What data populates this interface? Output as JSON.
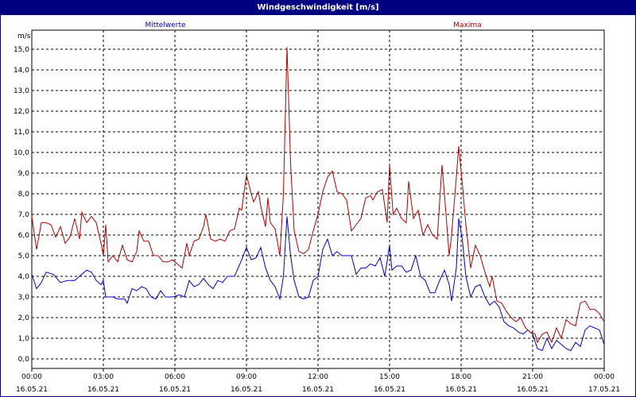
{
  "window": {
    "title": "Windgeschwindigkeit [m/s]"
  },
  "colors": {
    "mittelwerte": "#0000c8",
    "maxima": "#b00000",
    "titlebar": "#000080",
    "grid": "#000000"
  },
  "chart_data": {
    "type": "line",
    "title": "Windgeschwindigkeit [m/s]",
    "ylabel": "m/s",
    "xlabel": "",
    "ylim": [
      0,
      16
    ],
    "xlim": [
      0,
      24
    ],
    "grid": true,
    "legend": "top",
    "yticks": [
      "0,0",
      "1,0",
      "2,0",
      "3,0",
      "4,0",
      "5,0",
      "6,0",
      "7,0",
      "8,0",
      "9,0",
      "10,0",
      "11,0",
      "12,0",
      "13,0",
      "14,0",
      "15,0"
    ],
    "xticks": [
      {
        "time": "00:00",
        "date": "16.05.21"
      },
      {
        "time": "03:00",
        "date": "16.05.21"
      },
      {
        "time": "06:00",
        "date": "16.05.21"
      },
      {
        "time": "09:00",
        "date": "16.05.21"
      },
      {
        "time": "12:00",
        "date": "16.05.21"
      },
      {
        "time": "15:00",
        "date": "16.05.21"
      },
      {
        "time": "18:00",
        "date": "16.05.21"
      },
      {
        "time": "21:00",
        "date": "16.05.21"
      },
      {
        "time": "00:00",
        "date": "17.05.21"
      }
    ],
    "series": [
      {
        "name": "Mittelwerte",
        "points": [
          [
            0.0,
            4.1
          ],
          [
            0.2,
            3.4
          ],
          [
            0.4,
            3.7
          ],
          [
            0.6,
            4.2
          ],
          [
            0.9,
            4.1
          ],
          [
            1.2,
            3.7
          ],
          [
            1.5,
            3.8
          ],
          [
            1.8,
            3.8
          ],
          [
            2.0,
            4.0
          ],
          [
            2.3,
            4.3
          ],
          [
            2.5,
            4.2
          ],
          [
            2.7,
            3.8
          ],
          [
            2.9,
            3.6
          ],
          [
            3.0,
            3.8
          ],
          [
            3.1,
            3.0
          ],
          [
            3.4,
            3.0
          ],
          [
            3.6,
            2.9
          ],
          [
            3.9,
            2.9
          ],
          [
            4.0,
            2.7
          ],
          [
            4.2,
            3.4
          ],
          [
            4.4,
            3.3
          ],
          [
            4.6,
            3.5
          ],
          [
            4.8,
            3.4
          ],
          [
            5.0,
            3.0
          ],
          [
            5.2,
            2.9
          ],
          [
            5.4,
            3.3
          ],
          [
            5.6,
            3.0
          ],
          [
            5.9,
            3.0
          ],
          [
            6.2,
            3.1
          ],
          [
            6.4,
            3.0
          ],
          [
            6.6,
            3.8
          ],
          [
            6.8,
            3.5
          ],
          [
            7.0,
            3.6
          ],
          [
            7.2,
            3.9
          ],
          [
            7.4,
            3.6
          ],
          [
            7.6,
            3.4
          ],
          [
            7.8,
            3.8
          ],
          [
            8.0,
            3.7
          ],
          [
            8.2,
            4.0
          ],
          [
            8.5,
            4.0
          ],
          [
            8.8,
            4.8
          ],
          [
            9.0,
            5.4
          ],
          [
            9.2,
            4.8
          ],
          [
            9.4,
            4.9
          ],
          [
            9.6,
            5.4
          ],
          [
            9.8,
            4.4
          ],
          [
            10.0,
            3.8
          ],
          [
            10.2,
            3.5
          ],
          [
            10.4,
            2.9
          ],
          [
            10.55,
            4.0
          ],
          [
            10.7,
            6.9
          ],
          [
            10.85,
            5.0
          ],
          [
            11.0,
            3.8
          ],
          [
            11.2,
            3.0
          ],
          [
            11.4,
            2.9
          ],
          [
            11.6,
            3.0
          ],
          [
            11.8,
            3.8
          ],
          [
            12.0,
            4.0
          ],
          [
            12.2,
            5.3
          ],
          [
            12.4,
            5.8
          ],
          [
            12.6,
            5.0
          ],
          [
            12.8,
            5.2
          ],
          [
            13.0,
            5.0
          ],
          [
            13.2,
            5.0
          ],
          [
            13.4,
            5.0
          ],
          [
            13.6,
            4.1
          ],
          [
            13.8,
            4.4
          ],
          [
            14.0,
            4.4
          ],
          [
            14.2,
            4.6
          ],
          [
            14.4,
            4.5
          ],
          [
            14.6,
            4.9
          ],
          [
            14.8,
            4.0
          ],
          [
            15.0,
            5.5
          ],
          [
            15.1,
            4.3
          ],
          [
            15.3,
            4.5
          ],
          [
            15.5,
            4.5
          ],
          [
            15.7,
            4.2
          ],
          [
            15.9,
            4.3
          ],
          [
            16.1,
            5.0
          ],
          [
            16.3,
            4.0
          ],
          [
            16.5,
            3.8
          ],
          [
            16.7,
            3.2
          ],
          [
            16.9,
            3.2
          ],
          [
            17.1,
            3.8
          ],
          [
            17.3,
            4.3
          ],
          [
            17.5,
            3.6
          ],
          [
            17.6,
            2.8
          ],
          [
            17.8,
            4.4
          ],
          [
            17.9,
            6.8
          ],
          [
            18.05,
            5.8
          ],
          [
            18.2,
            4.0
          ],
          [
            18.4,
            3.0
          ],
          [
            18.6,
            3.5
          ],
          [
            18.8,
            3.6
          ],
          [
            19.0,
            3.0
          ],
          [
            19.2,
            2.6
          ],
          [
            19.4,
            2.8
          ],
          [
            19.6,
            2.5
          ],
          [
            19.8,
            1.8
          ],
          [
            20.0,
            1.6
          ],
          [
            20.2,
            1.5
          ],
          [
            20.4,
            1.3
          ],
          [
            20.6,
            1.2
          ],
          [
            20.8,
            1.4
          ],
          [
            21.0,
            1.2
          ],
          [
            21.2,
            0.5
          ],
          [
            21.4,
            0.4
          ],
          [
            21.6,
            1.0
          ],
          [
            21.8,
            0.5
          ],
          [
            22.0,
            0.9
          ],
          [
            22.2,
            0.7
          ],
          [
            22.4,
            0.5
          ],
          [
            22.6,
            0.4
          ],
          [
            22.8,
            0.8
          ],
          [
            23.0,
            0.6
          ],
          [
            23.2,
            1.4
          ],
          [
            23.4,
            1.6
          ],
          [
            23.6,
            1.5
          ],
          [
            23.8,
            1.4
          ],
          [
            24.0,
            0.7
          ]
        ]
      },
      {
        "name": "Maxima",
        "points": [
          [
            0.0,
            6.9
          ],
          [
            0.2,
            5.3
          ],
          [
            0.4,
            6.6
          ],
          [
            0.6,
            6.6
          ],
          [
            0.8,
            6.5
          ],
          [
            1.0,
            5.9
          ],
          [
            1.2,
            6.4
          ],
          [
            1.4,
            5.6
          ],
          [
            1.6,
            5.9
          ],
          [
            1.8,
            6.8
          ],
          [
            2.0,
            5.8
          ],
          [
            2.1,
            7.1
          ],
          [
            2.3,
            6.6
          ],
          [
            2.5,
            6.9
          ],
          [
            2.7,
            6.6
          ],
          [
            2.9,
            5.6
          ],
          [
            3.0,
            5.0
          ],
          [
            3.1,
            6.5
          ],
          [
            3.2,
            4.7
          ],
          [
            3.4,
            5.0
          ],
          [
            3.6,
            4.7
          ],
          [
            3.8,
            5.5
          ],
          [
            4.0,
            4.8
          ],
          [
            4.2,
            4.7
          ],
          [
            4.4,
            5.2
          ],
          [
            4.5,
            6.2
          ],
          [
            4.7,
            5.7
          ],
          [
            4.9,
            5.7
          ],
          [
            5.1,
            5.0
          ],
          [
            5.3,
            5.0
          ],
          [
            5.5,
            4.7
          ],
          [
            5.7,
            4.7
          ],
          [
            5.9,
            4.8
          ],
          [
            6.1,
            4.6
          ],
          [
            6.3,
            4.4
          ],
          [
            6.5,
            5.6
          ],
          [
            6.6,
            5.0
          ],
          [
            6.8,
            5.7
          ],
          [
            7.0,
            5.8
          ],
          [
            7.2,
            6.4
          ],
          [
            7.3,
            7.0
          ],
          [
            7.5,
            5.8
          ],
          [
            7.7,
            5.7
          ],
          [
            7.9,
            5.8
          ],
          [
            8.1,
            5.7
          ],
          [
            8.3,
            6.2
          ],
          [
            8.5,
            6.3
          ],
          [
            8.7,
            7.3
          ],
          [
            8.8,
            7.2
          ],
          [
            9.0,
            8.9
          ],
          [
            9.2,
            8.0
          ],
          [
            9.3,
            7.6
          ],
          [
            9.5,
            8.1
          ],
          [
            9.6,
            7.4
          ],
          [
            9.8,
            6.4
          ],
          [
            9.9,
            7.8
          ],
          [
            10.0,
            6.6
          ],
          [
            10.2,
            6.3
          ],
          [
            10.4,
            5.0
          ],
          [
            10.55,
            8.0
          ],
          [
            10.7,
            15.1
          ],
          [
            10.85,
            9.5
          ],
          [
            11.0,
            6.2
          ],
          [
            11.2,
            5.2
          ],
          [
            11.4,
            5.1
          ],
          [
            11.6,
            5.3
          ],
          [
            11.8,
            6.2
          ],
          [
            12.0,
            7.0
          ],
          [
            12.2,
            8.1
          ],
          [
            12.4,
            8.8
          ],
          [
            12.6,
            9.1
          ],
          [
            12.8,
            8.1
          ],
          [
            13.0,
            8.0
          ],
          [
            13.2,
            7.7
          ],
          [
            13.4,
            6.2
          ],
          [
            13.6,
            6.5
          ],
          [
            13.8,
            6.8
          ],
          [
            14.0,
            7.8
          ],
          [
            14.2,
            7.9
          ],
          [
            14.3,
            7.7
          ],
          [
            14.5,
            8.1
          ],
          [
            14.7,
            8.2
          ],
          [
            14.9,
            6.6
          ],
          [
            15.0,
            9.4
          ],
          [
            15.15,
            7.0
          ],
          [
            15.3,
            7.3
          ],
          [
            15.5,
            6.8
          ],
          [
            15.7,
            6.6
          ],
          [
            15.8,
            8.6
          ],
          [
            16.0,
            6.8
          ],
          [
            16.2,
            7.2
          ],
          [
            16.4,
            6.0
          ],
          [
            16.6,
            6.5
          ],
          [
            16.8,
            6.0
          ],
          [
            17.0,
            5.8
          ],
          [
            17.2,
            9.4
          ],
          [
            17.3,
            8.0
          ],
          [
            17.5,
            5.0
          ],
          [
            17.6,
            6.0
          ],
          [
            17.8,
            8.8
          ],
          [
            17.9,
            10.3
          ],
          [
            18.05,
            8.5
          ],
          [
            18.2,
            6.5
          ],
          [
            18.4,
            4.4
          ],
          [
            18.6,
            5.5
          ],
          [
            18.8,
            5.0
          ],
          [
            19.0,
            4.2
          ],
          [
            19.2,
            3.5
          ],
          [
            19.3,
            4.0
          ],
          [
            19.5,
            2.8
          ],
          [
            19.7,
            2.7
          ],
          [
            19.9,
            2.3
          ],
          [
            20.1,
            2.0
          ],
          [
            20.3,
            1.8
          ],
          [
            20.5,
            2.0
          ],
          [
            20.7,
            1.5
          ],
          [
            20.9,
            1.3
          ],
          [
            21.1,
            1.2
          ],
          [
            21.2,
            0.8
          ],
          [
            21.4,
            1.2
          ],
          [
            21.6,
            1.3
          ],
          [
            21.8,
            0.8
          ],
          [
            22.0,
            1.5
          ],
          [
            22.2,
            1.0
          ],
          [
            22.4,
            1.9
          ],
          [
            22.6,
            1.7
          ],
          [
            22.8,
            1.6
          ],
          [
            23.0,
            2.7
          ],
          [
            23.2,
            2.8
          ],
          [
            23.4,
            2.4
          ],
          [
            23.6,
            2.4
          ],
          [
            23.8,
            2.2
          ],
          [
            24.0,
            1.8
          ]
        ]
      }
    ]
  }
}
